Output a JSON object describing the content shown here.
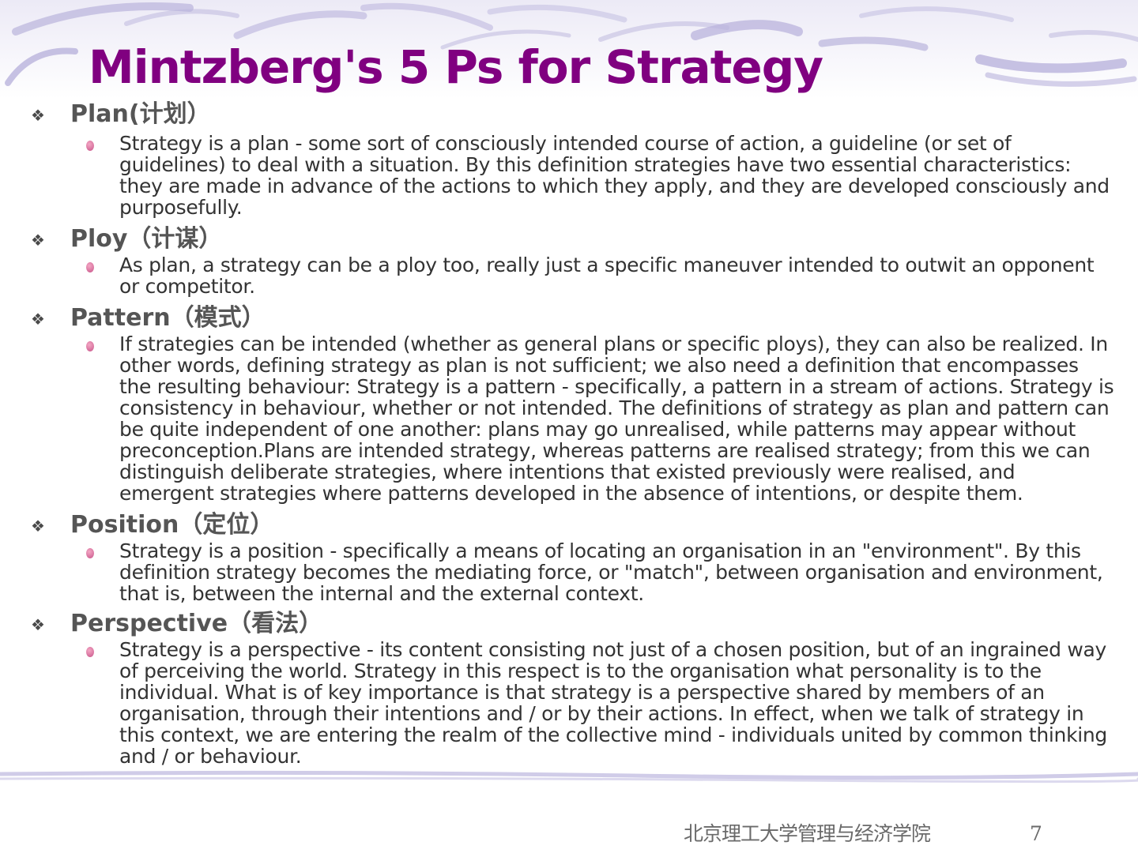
{
  "title": "Mintzberg's 5 Ps for Strategy",
  "colors": {
    "title": "#800080",
    "bullet": "#d06898",
    "decor": "#b9b3dc"
  },
  "icons": {
    "section_bullet": "diamond-cross-icon",
    "item_bullet": "pink-dot-icon"
  },
  "sections": [
    {
      "heading": "Plan(计划）",
      "text": "Strategy is a plan - some sort of consciously intended course of action, a guideline (or set of guidelines) to deal with a situation. By this definition strategies have two essential characteristics: they are made in advance of the actions to which they apply, and they are developed consciously and purposefully."
    },
    {
      "heading": "Ploy（计谋）",
      "text": "As plan, a strategy can be a ploy too, really just a specific maneuver intended to outwit an opponent or competitor."
    },
    {
      "heading": "Pattern（模式）",
      "text": "If strategies can be intended (whether as general plans or specific ploys), they can also be realized. In other words, defining strategy as plan is not sufficient; we also need a definition that encompasses the resulting behaviour: Strategy is a pattern - specifically, a pattern in a stream of actions. Strategy is consistency in behaviour, whether or not intended. The definitions of strategy as plan and pattern can be quite independent of one another: plans may go unrealised, while patterns may appear without preconception.Plans are intended strategy, whereas patterns are realised strategy; from this we can distinguish deliberate strategies, where intentions that existed previously were realised, and emergent strategies where patterns developed in the absence of intentions, or despite them."
    },
    {
      "heading": "Position（定位）",
      "text": "Strategy is a position - specifically a means of locating an organisation in an \"environment\". By this definition strategy becomes the mediating force, or \"match\", between organisation and environment, that is, between the internal and the external context."
    },
    {
      "heading": "Perspective（看法）",
      "text": "Strategy is a perspective - its content consisting not just of a chosen position, but of an ingrained way of perceiving the world. Strategy in this respect is to the organisation what personality is to the individual. What is of key importance is that strategy is a perspective shared by members of an organisation, through their intentions and / or by their actions. In effect, when we talk of strategy in this context, we are entering the realm of the collective mind - individuals united by common thinking and / or behaviour."
    }
  ],
  "footer": {
    "institution": "北京理工大学管理与经济学院",
    "page": "7"
  }
}
